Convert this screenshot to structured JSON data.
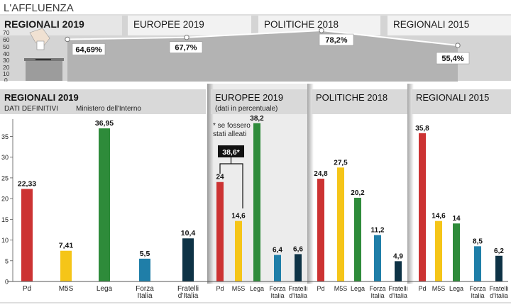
{
  "header": {
    "title": "L'AFFLUENZA"
  },
  "turnout": {
    "labels": [
      "REGIONALI 2019",
      "EUROPEE 2019",
      "POLITICHE 2018",
      "REGIONALI 2015"
    ],
    "y_ticks": [
      "70",
      "60",
      "50",
      "40",
      "30",
      "20",
      "10",
      "0"
    ],
    "values": [
      64.69,
      67.7,
      78.2,
      55.4
    ],
    "value_labels": [
      "64,69%",
      "67,7%",
      "78,2%",
      "55,4%"
    ],
    "ylim": [
      0,
      75
    ]
  },
  "panels": {
    "regionali2019": {
      "title": "REGIONALI 2019",
      "subtitle_left": "DATI DEFINITIVI",
      "subtitle_right": "Ministero dell'Interno"
    },
    "europee2019": {
      "title": "EUROPEE 2019",
      "subtitle": "(dati in percentuale)",
      "note_line1": "* se fossero",
      "note_line2": "stati alleati",
      "alliance_label": "38,6*"
    },
    "politiche2018": {
      "title": "POLITICHE 2018"
    },
    "regionali2015": {
      "title": "REGIONALI 2015"
    }
  },
  "colors": {
    "Pd": "#cc3333",
    "M5S": "#f5c518",
    "Lega": "#2e8b3a",
    "Forza Italia": "#1f7ea8",
    "Fratelli d'Italia": "#0e3346"
  },
  "chart_data": [
    {
      "type": "line",
      "title": "L'AFFLUENZA",
      "categories": [
        "REGIONALI 2019",
        "EUROPEE 2019",
        "POLITICHE 2018",
        "REGIONALI 2015"
      ],
      "values": [
        64.69,
        67.7,
        78.2,
        55.4
      ],
      "ylim": [
        0,
        75
      ]
    },
    {
      "type": "bar",
      "title": "REGIONALI 2019",
      "categories": [
        "Pd",
        "M5S",
        "Lega",
        "Forza Italia",
        "Fratelli d'Italia"
      ],
      "values": [
        22.33,
        7.41,
        36.95,
        5.5,
        10.4
      ],
      "value_labels": [
        "22,33",
        "7,41",
        "36,95",
        "5,5",
        "10,4"
      ],
      "ylim": [
        0,
        38.5
      ],
      "y_ticks": [
        0,
        5,
        10,
        15,
        20,
        25,
        30,
        35
      ]
    },
    {
      "type": "bar",
      "title": "EUROPEE 2019",
      "categories": [
        "Pd",
        "M5S",
        "Lega",
        "Forza Italia",
        "Fratelli d'Italia"
      ],
      "values": [
        24,
        14.6,
        38.2,
        6.4,
        6.6
      ],
      "value_labels": [
        "24",
        "14,6",
        "38,2",
        "6,4",
        "6,6"
      ],
      "ylim": [
        0,
        38.5
      ]
    },
    {
      "type": "bar",
      "title": "POLITICHE 2018",
      "categories": [
        "Pd",
        "M5S",
        "Lega",
        "Forza Italia",
        "Fratelli d'Italia"
      ],
      "values": [
        24.8,
        27.5,
        20.2,
        11.2,
        4.9
      ],
      "value_labels": [
        "24,8",
        "27,5",
        "20,2",
        "11,2",
        "4,9"
      ],
      "ylim": [
        0,
        38.5
      ]
    },
    {
      "type": "bar",
      "title": "REGIONALI 2015",
      "categories": [
        "Pd",
        "M5S",
        "Lega",
        "Forza Italia",
        "Fratelli d'Italia"
      ],
      "values": [
        35.8,
        14.6,
        14,
        8.5,
        6.2
      ],
      "value_labels": [
        "35,8",
        "14,6",
        "14",
        "8,5",
        "6,2"
      ],
      "ylim": [
        0,
        38.5
      ]
    }
  ]
}
